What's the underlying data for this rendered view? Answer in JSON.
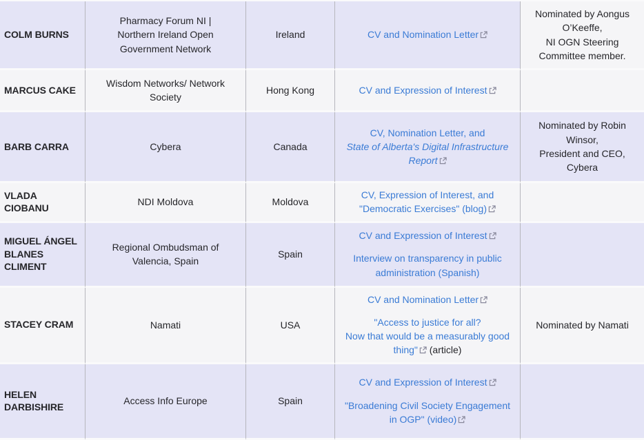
{
  "colors": {
    "page_background": "#ffffff",
    "row_shaded": "#e4e4f6",
    "row_plain": "#f5f5f7",
    "vertical_border": "#b6b6bd",
    "horizontal_border": "#fafafb",
    "link": "#3a7bd5",
    "text": "#26262a",
    "external_icon": "#88889b"
  },
  "icons": {
    "external_link": "boxed-arrow-top-right"
  },
  "table": {
    "columns": [
      "name",
      "organization",
      "country",
      "links",
      "nomination"
    ],
    "rows": [
      {
        "name": "COLM BURNS",
        "organization": "Pharmacy Forum NI |\nNorthern Ireland Open\nGovernment Network",
        "country": "Ireland",
        "links": [
          [
            {
              "text": "CV and Nomination Letter",
              "link": true,
              "ext": true
            }
          ]
        ],
        "nomination": "Nominated by Aongus O’Keeffe,\nNI OGN Steering Committee member.",
        "nomination_plain": true
      },
      {
        "name": "MARCUS CAKE",
        "organization": "Wisdom Networks/ Network\nSociety",
        "country": "Hong Kong",
        "links": [
          [
            {
              "text": "CV and Expression of Interest",
              "link": true,
              "ext": true
            }
          ]
        ],
        "nomination": ""
      },
      {
        "name": "BARB CARRA",
        "organization": "Cybera",
        "country": "Canada",
        "links": [
          [
            {
              "text": "CV, Nomination Letter, and\n",
              "link": true
            },
            {
              "text": "State of Alberta's Digital Infrastructure\nReport",
              "link": true,
              "italic": true,
              "ext": true
            }
          ]
        ],
        "nomination": "Nominated by Robin Winsor,\nPresident and CEO,\nCybera"
      },
      {
        "name": "VLADA CIOBANU",
        "organization": "NDI Moldova",
        "country": "Moldova",
        "links": [
          [
            {
              "text": "CV, Expression of Interest, and\n\"Democratic Exercises\" (blog)",
              "link": true,
              "ext": true
            }
          ]
        ],
        "nomination": ""
      },
      {
        "name": "MIGUEL ÁNGEL BLANES CLIMENT",
        "organization": "Regional Ombudsman of\nValencia, Spain",
        "country": "Spain",
        "links": [
          [
            {
              "text": "CV and Expression of Interest",
              "link": true,
              "ext": true
            }
          ],
          [
            {
              "text": "Interview on transparency in public administration (Spanish)",
              "link": true
            }
          ]
        ],
        "nomination": ""
      },
      {
        "name": "STACEY CRAM",
        "organization": "Namati",
        "country": "USA",
        "links": [
          [
            {
              "text": "CV and Nomination Letter",
              "link": true,
              "ext": true
            }
          ],
          [
            {
              "text": "\"Access to justice for all?\nNow that would be a measurably good thing\"",
              "link": true,
              "ext": true
            },
            {
              "text": " (article)"
            }
          ]
        ],
        "nomination": "Nominated by Namati"
      },
      {
        "name": "HELEN DARBISHIRE",
        "organization": "Access Info Europe",
        "country": "Spain",
        "links": [
          [
            {
              "text": "CV and Expression of Interest",
              "link": true,
              "ext": true
            }
          ],
          [
            {
              "text": "\"Broadening Civil Society Engagement\nin OGP\" (video)",
              "link": true,
              "ext": true
            }
          ]
        ],
        "nomination": ""
      }
    ]
  }
}
